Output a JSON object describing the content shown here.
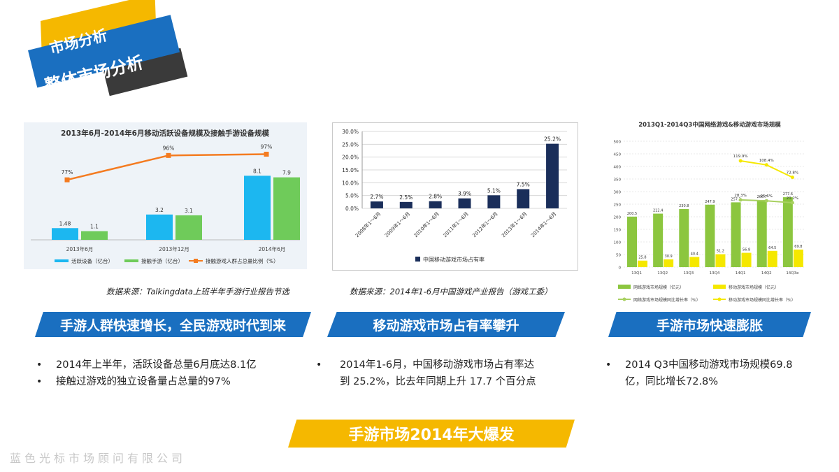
{
  "header": {
    "tag_label": "市场分析",
    "title": "整体市场分析"
  },
  "charts": [
    {
      "type": "bar",
      "title": "2013年6月-2014年6月移动活跃设备规模及接触手游设备规模",
      "categories": [
        "2013年6月",
        "2013年12月",
        "2014年6月"
      ],
      "series": [
        {
          "name": "活跃设备（亿台）",
          "color": "#1cb7f0",
          "values": [
            1.48,
            3.2,
            8.1
          ]
        },
        {
          "name": "接触手游（亿台）",
          "color": "#6fcb5a",
          "values": [
            1.1,
            3.1,
            7.9
          ]
        }
      ],
      "line_series": {
        "name": "接触游戏人群占总量比例（%）",
        "color": "#f47b20",
        "values": [
          77,
          96,
          97
        ],
        "labels": [
          "77%",
          "96%",
          "97%"
        ]
      },
      "ylim": [
        0,
        10
      ]
    },
    {
      "type": "bar",
      "title": "",
      "categories": [
        "2008年1～6月",
        "2009年1～6月",
        "2010年1～6月",
        "2011年1～6月",
        "2012年1～6月",
        "2013年1～6月",
        "2014年1～6月"
      ],
      "series": [
        {
          "name": "中国移动游戏市场占有率",
          "color": "#1a2e5a",
          "values": [
            2.7,
            2.5,
            2.8,
            3.9,
            5.1,
            7.5,
            25.2
          ]
        }
      ],
      "value_labels": [
        "2.7%",
        "2.5%",
        "2.8%",
        "3.9%",
        "5.1%",
        "7.5%",
        "25.2%"
      ],
      "yticks": [
        "0.0%",
        "5.0%",
        "10.0%",
        "15.0%",
        "20.0%",
        "25.0%",
        "30.0%"
      ],
      "ylim": [
        0,
        30
      ]
    },
    {
      "type": "bar",
      "title": "2013Q1-2014Q3中国网络游戏&移动游戏市场规模",
      "categories": [
        "13Q1",
        "13Q2",
        "13Q3",
        "13Q4",
        "14Q1",
        "14Q2",
        "14Q3e"
      ],
      "series": [
        {
          "name": "网络游戏市场规模（亿元）",
          "color": "#8cc63f",
          "values": [
            200.5,
            212.4,
            230.8,
            247.9,
            257.3,
            266.7,
            277.6
          ]
        },
        {
          "name": "移动游戏市场规模（亿元）",
          "color": "#f5e800",
          "values": [
            25.8,
            30.9,
            40.4,
            51.2,
            56.8,
            64.5,
            69.8
          ]
        }
      ],
      "line_series": [
        {
          "name": "网络游戏市场规模同比增长率（%）",
          "color": "#a8d060",
          "values": [
            28.3,
            25.6,
            20.2
          ],
          "labels": [
            "28.3%",
            "25.6%",
            "20.2%"
          ]
        },
        {
          "name": "移动游戏市场规模同比增长率（%）",
          "color": "#f5e800",
          "values": [
            119.9,
            108.4,
            72.8
          ],
          "labels": [
            "119.9%",
            "108.4%",
            "72.8%"
          ]
        }
      ],
      "yticks": [
        "0",
        "50",
        "100",
        "150",
        "200",
        "250",
        "300",
        "350",
        "400",
        "450",
        "500"
      ],
      "ylim": [
        0,
        500
      ]
    }
  ],
  "sources": [
    "数据来源：Talkingdata上班半年手游行业报告节选",
    "数据来源：2014年1-6月中国游戏产业报告（游戏工委）"
  ],
  "banners": [
    "手游人群快速增长，全民游戏时代到来",
    "移动游戏市场占有率攀升",
    "手游市场快速膨胀"
  ],
  "bullets": {
    "col1": [
      "2014年上半年，活跃设备总量6月底达8.1亿",
      "接触过游戏的独立设备量占总量的97%"
    ],
    "col2_line1": "2014年1-6月，中国移动游戏市场占有率达",
    "col2_line2": "到 25.2%，比去年同期上升 17.7 个百分点",
    "col3_line1": "2014  Q3中国移动游戏市场规模69.8",
    "col3_line2": "亿，同比增长72.8%"
  },
  "footer": {
    "highlight": "手游市场2014年大爆发",
    "company": "蓝色光标市场顾问有限公司"
  },
  "colors": {
    "blue": "#1a6fc0",
    "yellow": "#f5b800"
  }
}
